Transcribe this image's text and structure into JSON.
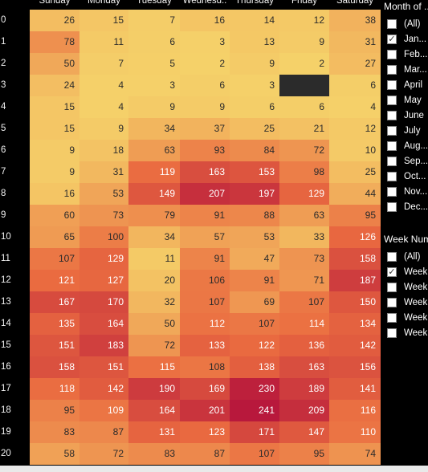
{
  "heatmap": {
    "days": [
      "Sunday",
      "Monday",
      "Tuesday",
      "Wednesd..",
      "Thursday",
      "Friday",
      "Saturday"
    ],
    "hours": [
      "0",
      "1",
      "2",
      "3",
      "4",
      "5",
      "6",
      "7",
      "8",
      "9",
      "10",
      "11",
      "12",
      "13",
      "14",
      "15",
      "16",
      "17",
      "18",
      "19",
      "20"
    ],
    "values": [
      [
        26,
        15,
        7,
        16,
        14,
        12,
        38
      ],
      [
        78,
        11,
        6,
        3,
        13,
        9,
        31
      ],
      [
        50,
        7,
        5,
        2,
        9,
        2,
        27
      ],
      [
        24,
        4,
        3,
        6,
        3,
        null,
        6
      ],
      [
        15,
        4,
        9,
        9,
        6,
        6,
        4
      ],
      [
        15,
        9,
        34,
        37,
        25,
        21,
        12
      ],
      [
        9,
        18,
        63,
        93,
        84,
        72,
        10
      ],
      [
        9,
        31,
        119,
        163,
        153,
        98,
        25
      ],
      [
        16,
        53,
        149,
        207,
        197,
        129,
        44
      ],
      [
        60,
        73,
        79,
        91,
        88,
        63,
        95
      ],
      [
        65,
        100,
        34,
        57,
        53,
        33,
        126
      ],
      [
        107,
        129,
        11,
        91,
        47,
        73,
        158
      ],
      [
        121,
        127,
        20,
        106,
        91,
        71,
        187
      ],
      [
        167,
        170,
        32,
        107,
        69,
        107,
        150
      ],
      [
        135,
        164,
        50,
        112,
        107,
        114,
        134
      ],
      [
        151,
        183,
        72,
        133,
        122,
        136,
        142
      ],
      [
        158,
        151,
        115,
        108,
        138,
        163,
        156
      ],
      [
        118,
        142,
        190,
        169,
        230,
        189,
        141
      ],
      [
        95,
        109,
        164,
        201,
        241,
        209,
        116
      ],
      [
        83,
        87,
        131,
        123,
        171,
        147,
        110
      ],
      [
        58,
        72,
        83,
        87,
        107,
        95,
        74
      ]
    ],
    "color_low": "#f5d36a",
    "color_mid": "#ea6b40",
    "color_high": "#b8183c",
    "missing_color": "#2b2b2b"
  },
  "filters": {
    "month": {
      "title": "Month of ..",
      "items": [
        {
          "label": "(All)",
          "checked": false
        },
        {
          "label": "Jan...",
          "checked": true
        },
        {
          "label": "Feb...",
          "checked": false
        },
        {
          "label": "Mar...",
          "checked": false
        },
        {
          "label": "April",
          "checked": false
        },
        {
          "label": "May",
          "checked": false
        },
        {
          "label": "June",
          "checked": false
        },
        {
          "label": "July",
          "checked": false
        },
        {
          "label": "Aug...",
          "checked": false
        },
        {
          "label": "Sep...",
          "checked": false
        },
        {
          "label": "Oct...",
          "checked": false
        },
        {
          "label": "Nov...",
          "checked": false
        },
        {
          "label": "Dec...",
          "checked": false
        }
      ]
    },
    "week": {
      "title": "Week Num..",
      "items": [
        {
          "label": "(All)",
          "checked": false
        },
        {
          "label": "Week",
          "checked": true
        },
        {
          "label": "Week",
          "checked": false
        },
        {
          "label": "Week",
          "checked": false
        },
        {
          "label": "Week",
          "checked": false
        },
        {
          "label": "Week",
          "checked": false
        }
      ]
    }
  }
}
